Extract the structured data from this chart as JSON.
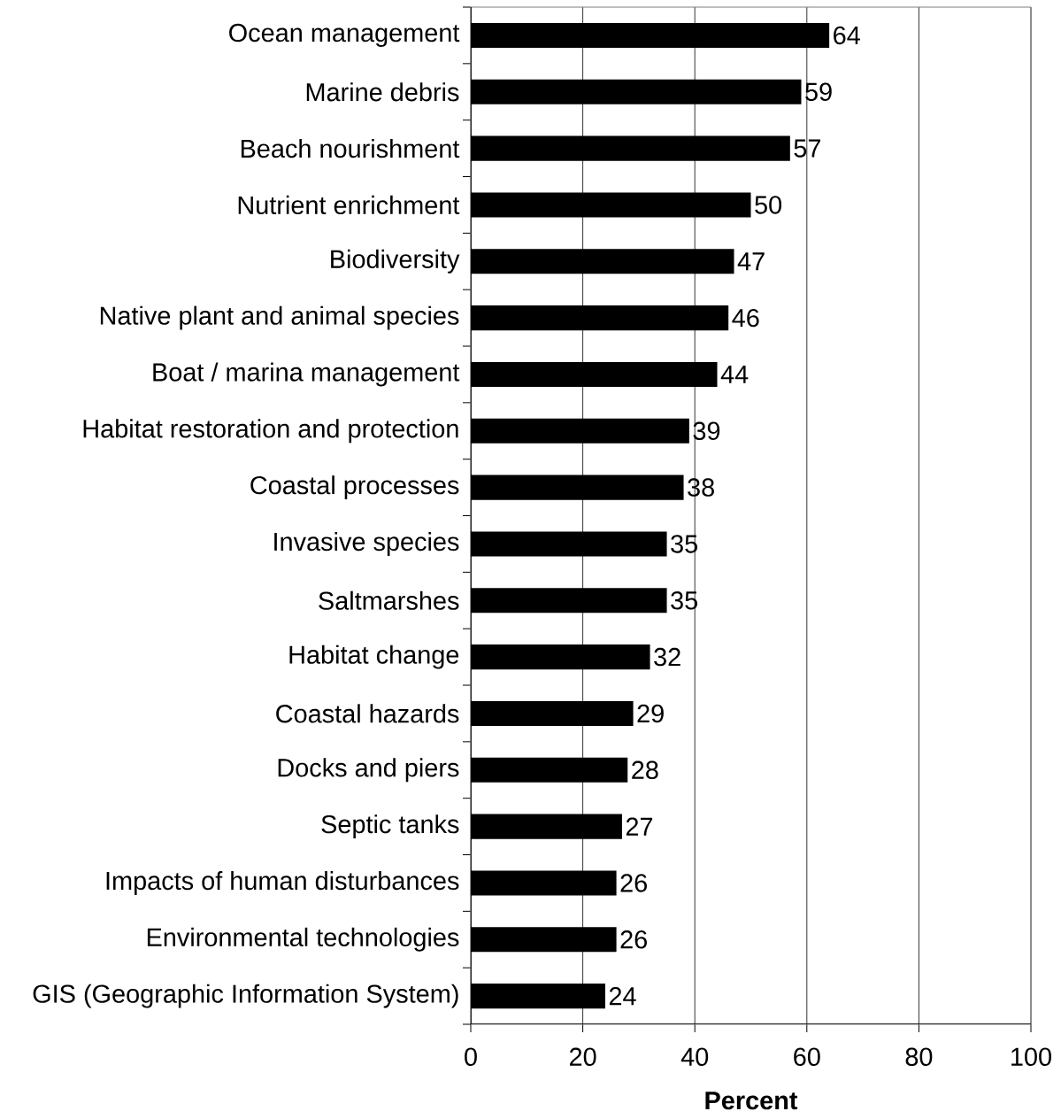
{
  "chart_data": {
    "type": "bar",
    "orientation": "horizontal",
    "xlabel": "Percent",
    "categories": [
      "Ocean management",
      "Marine debris",
      "Beach nourishment",
      "Nutrient enrichment",
      "Biodiversity",
      "Native plant and animal species",
      "Boat / marina management",
      "Habitat restoration and protection",
      "Coastal processes",
      "Invasive species",
      "Saltmarshes",
      "Habitat change",
      "Coastal hazards",
      "Docks and piers",
      "Septic tanks",
      "Impacts of human disturbances",
      "Environmental technologies",
      "GIS (Geographic Information System)"
    ],
    "values": [
      64,
      59,
      57,
      50,
      47,
      46,
      44,
      39,
      38,
      35,
      35,
      32,
      29,
      28,
      27,
      26,
      26,
      24
    ],
    "color": "#000000",
    "xlim": [
      0,
      100
    ],
    "xticks": [
      0,
      20,
      40,
      60,
      80,
      100
    ],
    "grid": "x",
    "data_labels": true
  }
}
